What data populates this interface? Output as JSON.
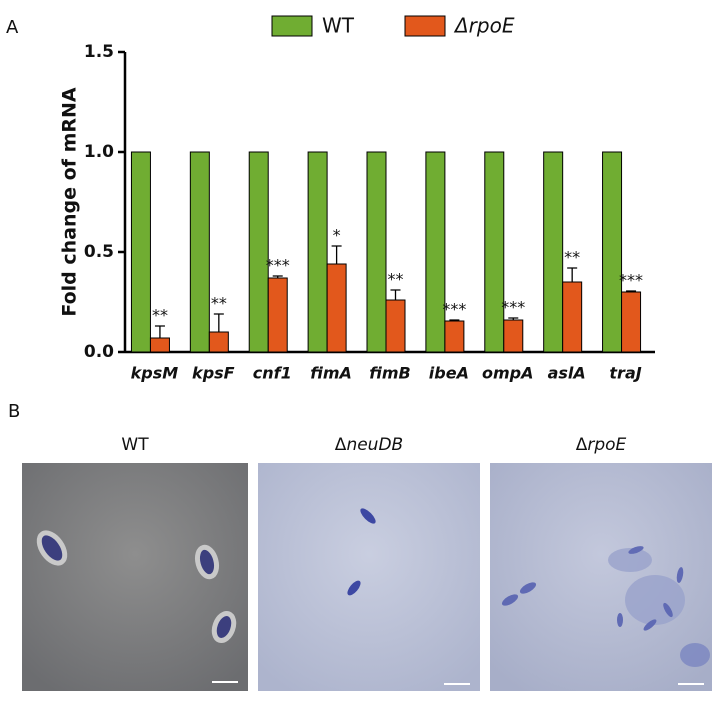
{
  "panel_a_label": "A",
  "chart_data": {
    "type": "bar",
    "y_label": "Fold change of mRNA",
    "categories": [
      "kpsM",
      "kpsF",
      "cnf1",
      "fimA",
      "fimB",
      "ibeA",
      "ompA",
      "aslA",
      "traJ"
    ],
    "series": [
      {
        "name": "WT",
        "color": "#70ad32",
        "values": [
          1,
          1,
          1,
          1,
          1,
          1,
          1,
          1,
          1
        ]
      },
      {
        "name": "ΔrpoE",
        "color": "#e2581c",
        "values": [
          0.07,
          0.1,
          0.37,
          0.44,
          0.26,
          0.155,
          0.16,
          0.35,
          0.3
        ],
        "errors": [
          0.06,
          0.09,
          0.01,
          0.09,
          0.05,
          0.005,
          0.01,
          0.07,
          0.005
        ],
        "value_labels": [
          "**",
          "**",
          "***",
          "*",
          "**",
          "***",
          "***",
          "**",
          "***"
        ]
      }
    ],
    "ylim": [
      0,
      1.5
    ],
    "yticks": [
      {
        "value": 0,
        "label": "0.0"
      },
      0.5,
      {
        "value": 1,
        "label": "1.0"
      },
      1.5
    ],
    "legend": "top"
  },
  "panel_b": {
    "label": "B",
    "images": [
      {
        "symbol": "",
        "name": "WT"
      },
      {
        "symbol": "Δ",
        "name": "neuDB"
      },
      {
        "symbol": "Δ",
        "name": "rpoE"
      }
    ]
  }
}
